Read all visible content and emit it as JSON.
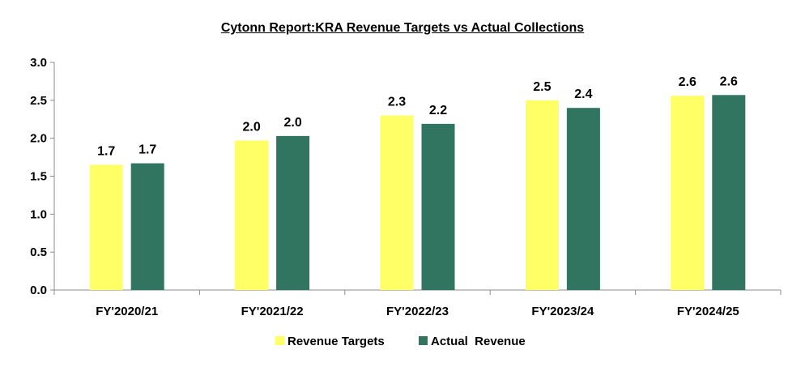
{
  "chart_data": {
    "type": "bar",
    "title": "Cytonn Report:KRA Revenue Targets vs Actual Collections",
    "categories": [
      "FY'2020/21",
      "FY'2021/22",
      "FY'2022/23",
      "FY'2023/24",
      "FY'2024/25"
    ],
    "series": [
      {
        "name": "Revenue Targets",
        "values": [
          1.65,
          1.97,
          2.3,
          2.5,
          2.56
        ],
        "labels": [
          "1.7",
          "2.0",
          "2.3",
          "2.5",
          "2.6"
        ],
        "color": "#FFFF66"
      },
      {
        "name": "Actual  Revenue",
        "values": [
          1.67,
          2.03,
          2.19,
          2.4,
          2.57
        ],
        "labels": [
          "1.7",
          "2.0",
          "2.2",
          "2.4",
          "2.6"
        ],
        "color": "#317560"
      }
    ],
    "y_ticks": [
      "0.0",
      "0.5",
      "1.0",
      "1.5",
      "2.0",
      "2.5",
      "3.0"
    ],
    "ylim": [
      0,
      3.0
    ],
    "xlabel": "",
    "ylabel": "",
    "grid": false,
    "legend_position": "bottom"
  }
}
